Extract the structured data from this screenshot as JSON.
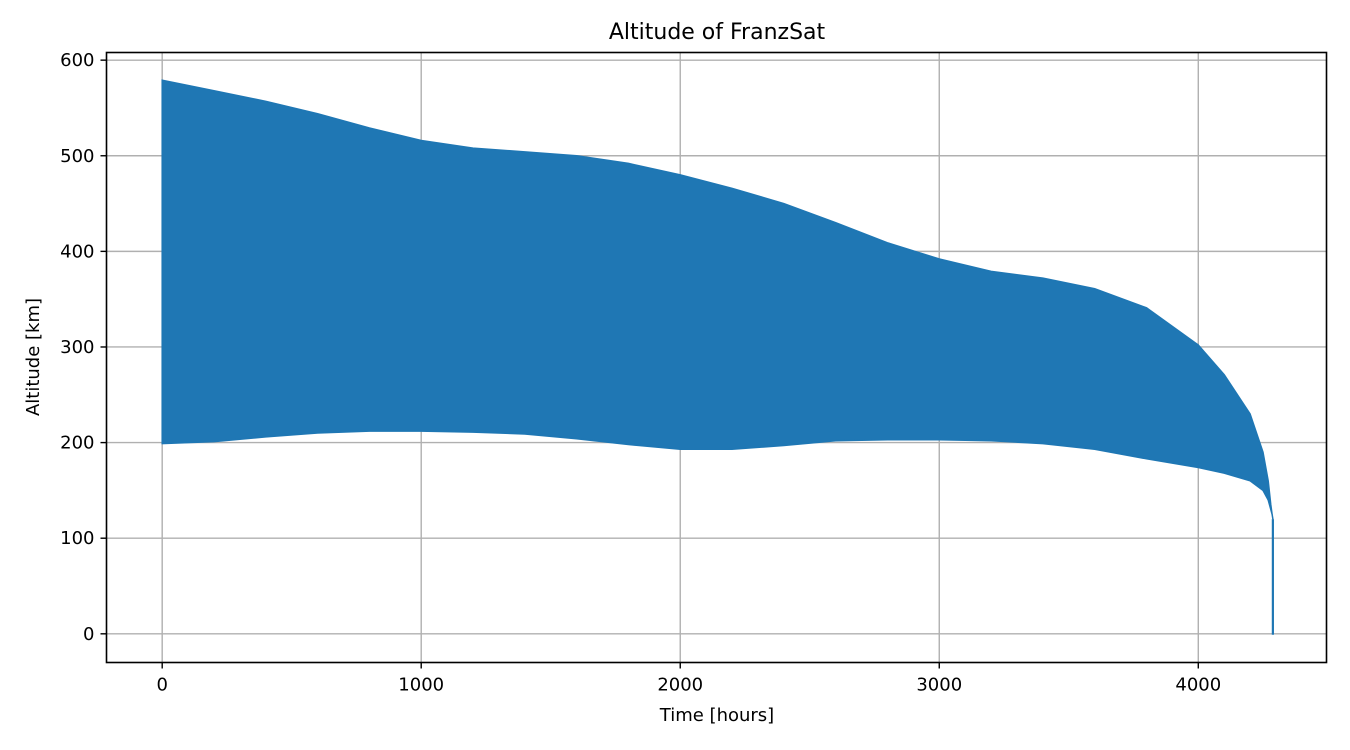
{
  "chart_data": {
    "type": "area",
    "title": "Altitude of FranzSat",
    "xlabel": "Time [hours]",
    "ylabel": "Altitude [km]",
    "xlim": [
      -215,
      4495
    ],
    "ylim": [
      -30,
      608
    ],
    "xticks": [
      0,
      1000,
      2000,
      3000,
      4000
    ],
    "yticks": [
      0,
      100,
      200,
      300,
      400,
      500,
      600
    ],
    "xtick_labels": [
      "0",
      "1000",
      "2000",
      "3000",
      "4000"
    ],
    "ytick_labels": [
      "0",
      "100",
      "200",
      "300",
      "400",
      "500",
      "600"
    ],
    "grid": true,
    "series": [
      {
        "color": "#1f77b4",
        "x": [
          0,
          200,
          400,
          600,
          800,
          1000,
          1200,
          1400,
          1600,
          1800,
          2000,
          2200,
          2400,
          2600,
          2800,
          3000,
          3200,
          3400,
          3600,
          3800,
          4000,
          4100,
          4200,
          4250,
          4270,
          4280,
          4285,
          4288
        ],
        "upper": [
          579,
          568,
          557,
          544,
          529,
          516,
          508,
          504,
          500,
          492,
          480,
          466,
          450,
          430,
          409,
          392,
          379,
          372,
          361,
          341,
          302,
          271,
          230,
          190,
          160,
          135,
          125,
          120
        ],
        "lower": [
          199,
          201,
          206,
          210,
          212,
          212,
          211,
          209,
          204,
          198,
          193,
          193,
          197,
          202,
          203,
          203,
          202,
          199,
          193,
          183,
          174,
          168,
          160,
          150,
          140,
          130,
          125,
          120
        ],
        "tail_x": [
          4288,
          4288
        ],
        "tail_y": [
          120,
          -1
        ]
      }
    ]
  }
}
